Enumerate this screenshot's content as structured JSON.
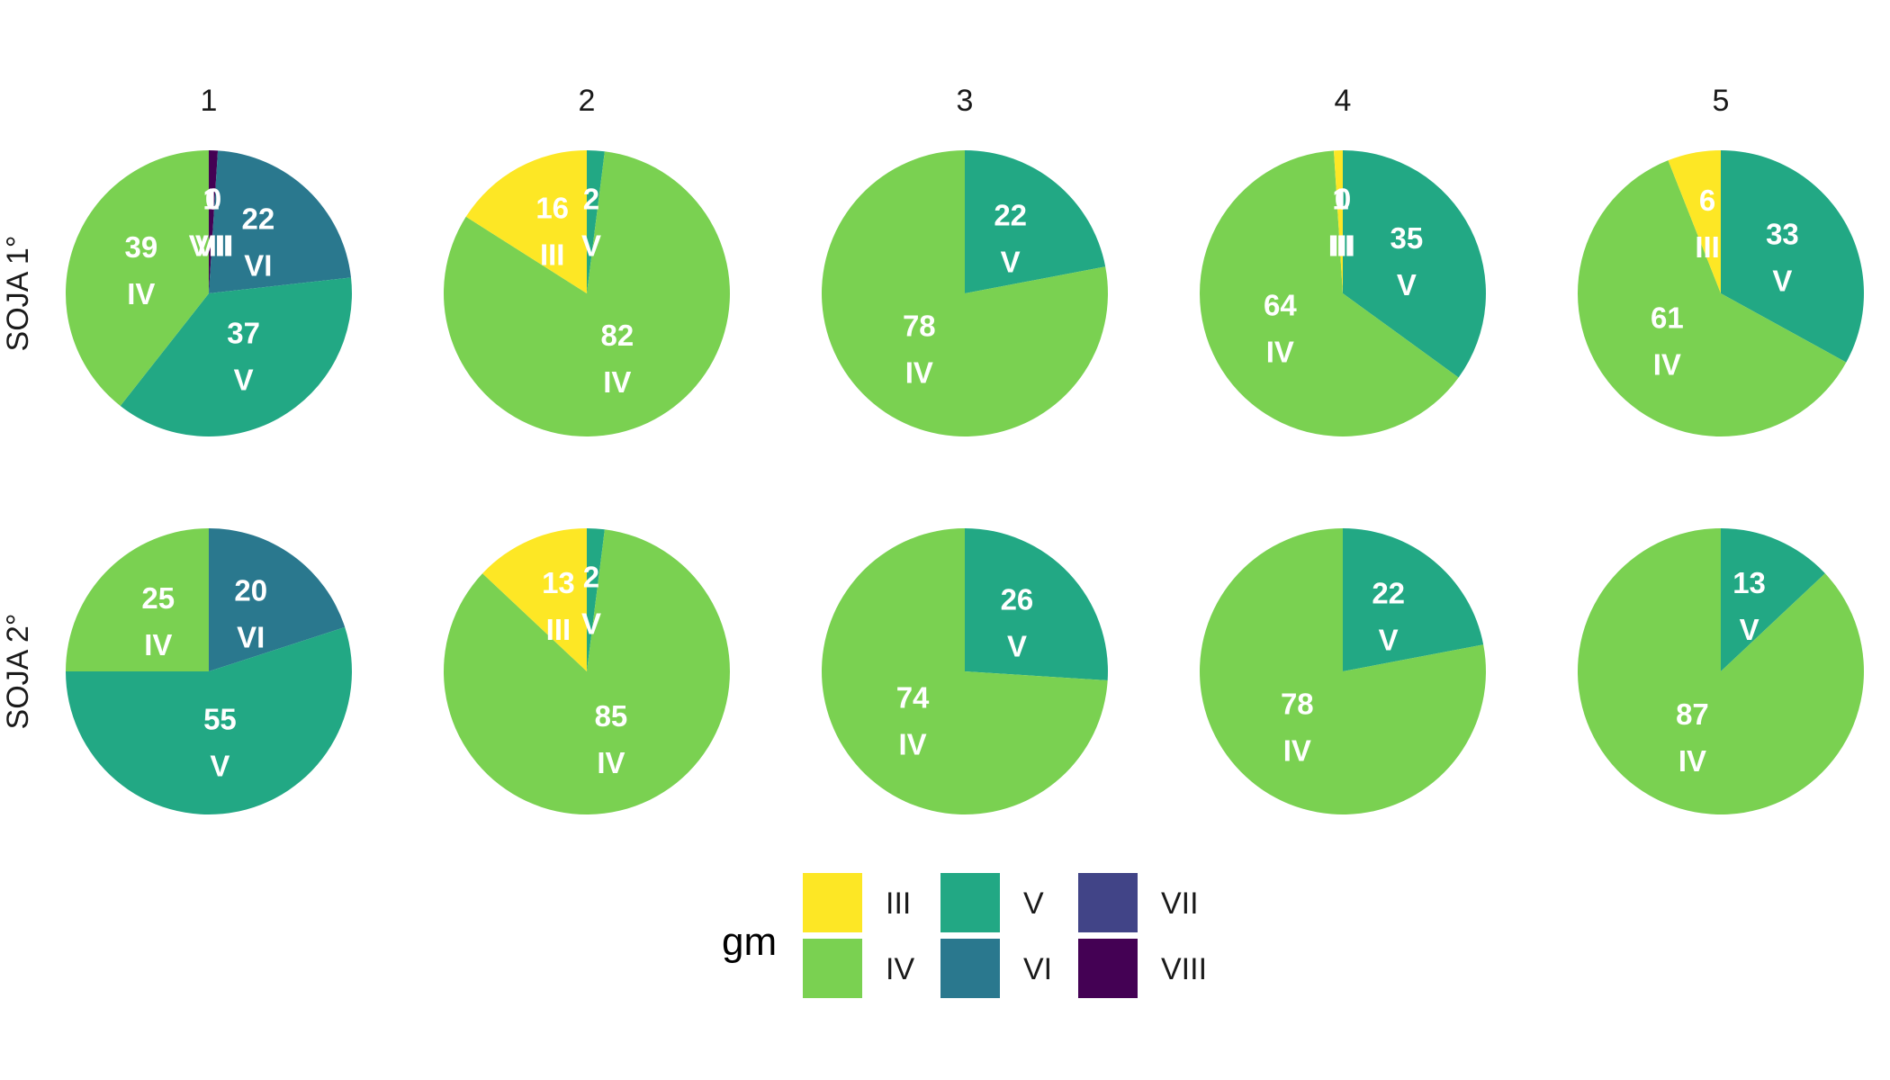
{
  "chart_data": {
    "type": "pie",
    "facet_columns": [
      "1",
      "2",
      "3",
      "4",
      "5"
    ],
    "facet_rows": [
      "SOJA 1°",
      "SOJA 2°"
    ],
    "legend": {
      "title": "gm",
      "position": "bottom",
      "entries": [
        "III",
        "IV",
        "V",
        "VI",
        "VII",
        "VIII"
      ]
    },
    "colors": {
      "III": "#FDE725",
      "IV": "#7AD151",
      "V": "#22A884",
      "VI": "#2A788E",
      "VII": "#414487",
      "VIII": "#440154"
    },
    "panels": [
      {
        "row": "SOJA 1°",
        "col": "1",
        "slices": [
          {
            "group": "VIII",
            "value": 1,
            "label": "1"
          },
          {
            "group": "VII",
            "value": 0,
            "label": "0"
          },
          {
            "group": "VI",
            "value": 22,
            "label": "22"
          },
          {
            "group": "V",
            "value": 37,
            "label": "37"
          },
          {
            "group": "IV",
            "value": 39,
            "label": "39"
          }
        ]
      },
      {
        "row": "SOJA 1°",
        "col": "2",
        "slices": [
          {
            "group": "V",
            "value": 2,
            "label": "2"
          },
          {
            "group": "IV",
            "value": 82,
            "label": "82"
          },
          {
            "group": "III",
            "value": 16,
            "label": "16"
          }
        ]
      },
      {
        "row": "SOJA 1°",
        "col": "3",
        "slices": [
          {
            "group": "V",
            "value": 22,
            "label": "22"
          },
          {
            "group": "IV",
            "value": 78,
            "label": "78"
          }
        ]
      },
      {
        "row": "SOJA 1°",
        "col": "4",
        "slices": [
          {
            "group": "V",
            "value": 35,
            "label": "35"
          },
          {
            "group": "IV",
            "value": 64,
            "label": "64"
          },
          {
            "group": "III",
            "value": 1,
            "label": "1"
          },
          {
            "group": "III",
            "value": 0,
            "label": "0"
          }
        ]
      },
      {
        "row": "SOJA 1°",
        "col": "5",
        "slices": [
          {
            "group": "V",
            "value": 33,
            "label": "33"
          },
          {
            "group": "IV",
            "value": 61,
            "label": "61"
          },
          {
            "group": "III",
            "value": 6,
            "label": "6"
          }
        ]
      },
      {
        "row": "SOJA 2°",
        "col": "1",
        "slices": [
          {
            "group": "VI",
            "value": 20,
            "label": "20"
          },
          {
            "group": "V",
            "value": 55,
            "label": "55"
          },
          {
            "group": "IV",
            "value": 25,
            "label": "25"
          }
        ]
      },
      {
        "row": "SOJA 2°",
        "col": "2",
        "slices": [
          {
            "group": "V",
            "value": 2,
            "label": "2"
          },
          {
            "group": "IV",
            "value": 85,
            "label": "85"
          },
          {
            "group": "III",
            "value": 13,
            "label": "13"
          }
        ]
      },
      {
        "row": "SOJA 2°",
        "col": "3",
        "slices": [
          {
            "group": "V",
            "value": 26,
            "label": "26"
          },
          {
            "group": "IV",
            "value": 74,
            "label": "74"
          }
        ]
      },
      {
        "row": "SOJA 2°",
        "col": "4",
        "slices": [
          {
            "group": "V",
            "value": 22,
            "label": "22"
          },
          {
            "group": "IV",
            "value": 78,
            "label": "78"
          }
        ]
      },
      {
        "row": "SOJA 2°",
        "col": "5",
        "slices": [
          {
            "group": "V",
            "value": 13,
            "label": "13"
          },
          {
            "group": "IV",
            "value": 87,
            "label": "87"
          }
        ]
      }
    ]
  }
}
